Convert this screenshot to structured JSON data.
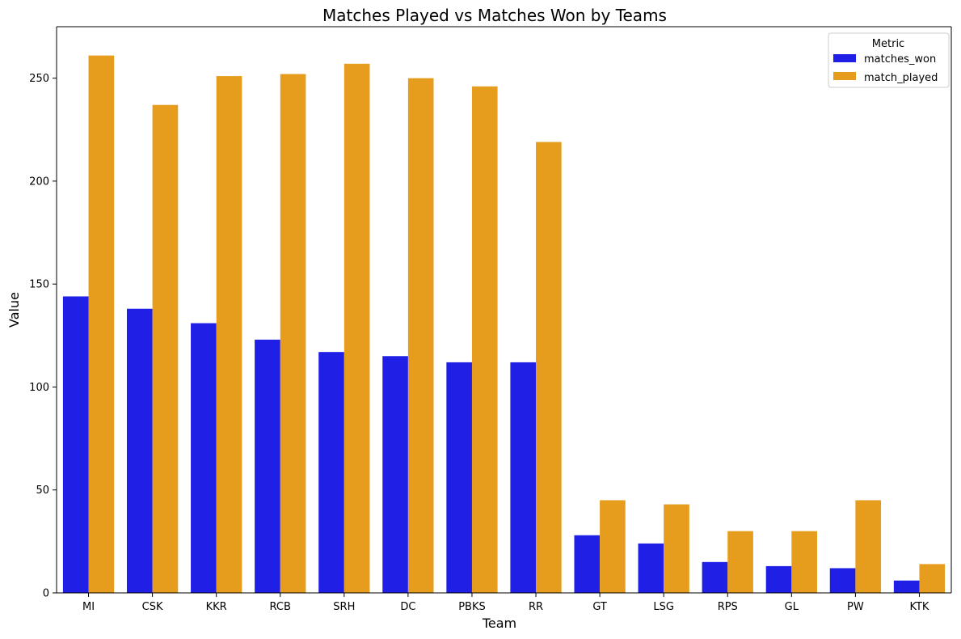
{
  "chart_data": {
    "type": "bar",
    "title": "Matches Played vs Matches Won by Teams",
    "xlabel": "Team",
    "ylabel": "Value",
    "ylim": [
      0,
      275
    ],
    "yticks": [
      0,
      50,
      100,
      150,
      200,
      250
    ],
    "categories": [
      "MI",
      "CSK",
      "KKR",
      "RCB",
      "SRH",
      "DC",
      "PBKS",
      "RR",
      "GT",
      "LSG",
      "RPS",
      "GL",
      "PW",
      "KTK"
    ],
    "series": [
      {
        "name": "matches_won",
        "color": "#1f1fe6",
        "values": [
          144,
          138,
          131,
          123,
          117,
          115,
          112,
          112,
          28,
          24,
          15,
          13,
          12,
          6
        ]
      },
      {
        "name": "match_played",
        "color": "#e69c1c",
        "values": [
          261,
          237,
          251,
          252,
          257,
          250,
          246,
          219,
          45,
          43,
          30,
          30,
          45,
          14
        ]
      }
    ],
    "legend": {
      "title": "Metric",
      "placement": "top-right"
    },
    "grid": false
  }
}
